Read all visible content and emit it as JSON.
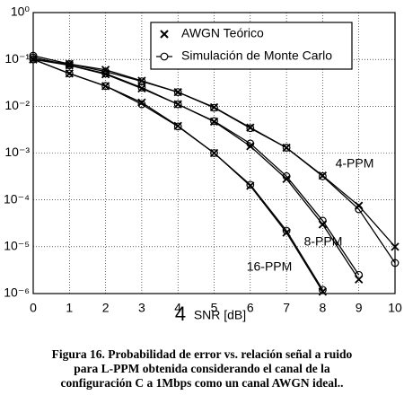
{
  "chart_data": {
    "type": "line",
    "log_y": true,
    "grid": true,
    "xlabel": "SNR [dB]",
    "xlim": [
      0,
      10
    ],
    "xticks": [
      0,
      1,
      2,
      3,
      4,
      5,
      6,
      7,
      8,
      9,
      10
    ],
    "ylim": [
      1e-06,
      1
    ],
    "yticks": [
      {
        "value": 1,
        "label": "10⁰"
      },
      {
        "value": 0.1,
        "label": "10⁻¹"
      },
      {
        "value": 0.01,
        "label": "10⁻²"
      },
      {
        "value": 0.001,
        "label": "10⁻³"
      },
      {
        "value": 0.0001,
        "label": "10⁻⁴"
      },
      {
        "value": 1e-05,
        "label": "10⁻⁵"
      },
      {
        "value": 1e-06,
        "label": "10⁻⁶"
      }
    ],
    "legend": [
      {
        "label": "AWGN Teórico",
        "marker": "x"
      },
      {
        "label": "Simulación de Monte Carlo",
        "marker": "o"
      }
    ],
    "legend_position": "upper right",
    "series": [
      {
        "name": "4-PPM",
        "color": "#000000",
        "x": [
          0,
          1,
          2,
          3,
          4,
          5,
          6,
          7,
          8,
          9,
          10
        ],
        "theory": [
          0.1,
          0.08,
          0.06,
          0.035,
          0.02,
          0.0095,
          0.0035,
          0.0013,
          0.00033,
          7.5e-05,
          1e-05
        ],
        "simulation": [
          0.12,
          0.08,
          0.055,
          0.034,
          0.02,
          0.0093,
          0.0034,
          0.0013,
          0.00032,
          6.3e-05,
          4.5e-06
        ]
      },
      {
        "name": "8-PPM",
        "color": "#000000",
        "x": [
          0,
          1,
          2,
          3,
          4,
          5,
          6,
          7,
          8,
          9
        ],
        "theory": [
          0.1,
          0.075,
          0.048,
          0.024,
          0.011,
          0.0047,
          0.0014,
          0.00028,
          3e-05,
          2e-06
        ],
        "simulation": [
          0.11,
          0.075,
          0.05,
          0.025,
          0.011,
          0.0048,
          0.0016,
          0.00032,
          3.6e-05,
          2.5e-06
        ]
      },
      {
        "name": "16-PPM",
        "color": "#000000",
        "x": [
          0,
          1,
          2,
          3,
          4,
          5,
          6,
          7,
          8
        ],
        "theory": [
          0.1,
          0.05,
          0.027,
          0.012,
          0.0038,
          0.001,
          0.0002,
          2e-05,
          1.1e-06
        ],
        "simulation": [
          0.1,
          0.05,
          0.027,
          0.011,
          0.0037,
          0.001,
          0.00021,
          2.2e-05,
          1.2e-06
        ]
      }
    ],
    "annotations": [
      "4"
    ],
    "caption": [
      "Figura 16. Probabilidad de error vs. relación señal a ruido",
      "para  L-PPM obtenida considerando el canal de la",
      "configuración C  a 1Mbps como un canal AWGN ideal.."
    ]
  }
}
